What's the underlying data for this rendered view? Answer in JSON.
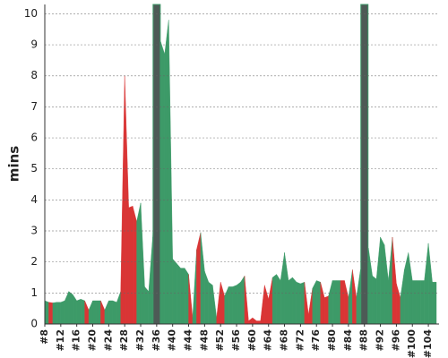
{
  "chart_data": {
    "type": "area",
    "y_label": "mins",
    "x": [
      8,
      9,
      10,
      11,
      12,
      13,
      14,
      15,
      16,
      17,
      18,
      19,
      20,
      21,
      22,
      23,
      24,
      25,
      26,
      27,
      28,
      29,
      30,
      31,
      32,
      33,
      34,
      35,
      36,
      37,
      38,
      39,
      40,
      41,
      42,
      43,
      44,
      45,
      46,
      47,
      48,
      49,
      50,
      51,
      52,
      53,
      54,
      55,
      56,
      57,
      58,
      59,
      60,
      61,
      62,
      63,
      64,
      65,
      66,
      67,
      68,
      69,
      70,
      71,
      72,
      73,
      74,
      75,
      76,
      77,
      78,
      79,
      80,
      81,
      82,
      83,
      84,
      85,
      86,
      87,
      88,
      89,
      90,
      91,
      92,
      93,
      94,
      95,
      96,
      97,
      98,
      99,
      100,
      101,
      102,
      103,
      104,
      105,
      106
    ],
    "values": [
      0.75,
      0.7,
      0.68,
      0.7,
      0.7,
      0.75,
      1.05,
      0.95,
      0.75,
      0.8,
      0.75,
      0.45,
      0.75,
      0.75,
      0.75,
      0.45,
      0.75,
      0.75,
      0.7,
      1.05,
      8.0,
      3.75,
      3.8,
      3.3,
      3.9,
      1.2,
      1.05,
      2.8,
      5.5,
      9.1,
      8.7,
      9.8,
      2.1,
      1.95,
      1.8,
      1.8,
      1.6,
      0.2,
      2.4,
      2.95,
      1.7,
      1.35,
      1.25,
      0.2,
      1.35,
      0.9,
      1.2,
      1.2,
      1.25,
      1.35,
      1.55,
      0.1,
      0.2,
      0.1,
      0.1,
      1.25,
      0.8,
      1.5,
      1.6,
      1.4,
      2.3,
      1.4,
      1.5,
      1.35,
      1.3,
      1.35,
      0.3,
      1.15,
      1.4,
      1.35,
      0.85,
      0.9,
      1.4,
      1.4,
      1.4,
      1.4,
      0.85,
      1.75,
      0.85,
      1.75,
      1.4,
      2.45,
      1.55,
      1.45,
      2.8,
      2.55,
      1.4,
      2.8,
      1.3,
      0.85,
      1.75,
      2.3,
      1.4,
      1.4,
      1.4,
      1.4,
      2.6,
      1.35,
      1.35
    ],
    "colors": [
      "#3d9a68",
      "#3d9a68",
      "#d93535",
      "#3d9a68",
      "#3d9a68",
      "#3d9a68",
      "#3d9a68",
      "#3d9a68",
      "#3d9a68",
      "#3d9a68",
      "#3d9a68",
      "#d93535",
      "#3d9a68",
      "#3d9a68",
      "#3d9a68",
      "#d93535",
      "#3d9a68",
      "#3d9a68",
      "#3d9a68",
      "#3d9a68",
      "#d93535",
      "#d93535",
      "#d93535",
      "#d93535",
      "#3d9a68",
      "#3d9a68",
      "#3d9a68",
      "#3d9a68",
      "#3d9a68",
      "#3d9a68",
      "#3d9a68",
      "#3d9a68",
      "#3d9a68",
      "#3d9a68",
      "#3d9a68",
      "#3d9a68",
      "#3d9a68",
      "#d93535",
      "#3d9a68",
      "#d93535",
      "#3d9a68",
      "#3d9a68",
      "#3d9a68",
      "#3d9a68",
      "#d93535",
      "#d93535",
      "#3d9a68",
      "#3d9a68",
      "#3d9a68",
      "#3d9a68",
      "#3d9a68",
      "#d93535",
      "#d93535",
      "#d93535",
      "#d93535",
      "#d93535",
      "#d93535",
      "#d93535",
      "#3d9a68",
      "#3d9a68",
      "#3d9a68",
      "#3d9a68",
      "#3d9a68",
      "#3d9a68",
      "#3d9a68",
      "#3d9a68",
      "#d93535",
      "#d93535",
      "#3d9a68",
      "#3d9a68",
      "#d93535",
      "#d93535",
      "#3d9a68",
      "#3d9a68",
      "#3d9a68",
      "#d93535",
      "#d93535",
      "#3d9a68",
      "#d93535",
      "#3d9a68",
      "#3d9a68",
      "#3d9a68",
      "#3d9a68",
      "#3d9a68",
      "#3d9a68",
      "#3d9a68",
      "#3d9a68",
      "#3d9a68",
      "#d93535",
      "#d93535",
      "#3d9a68",
      "#3d9a68",
      "#3d9a68",
      "#3d9a68",
      "#3d9a68",
      "#3d9a68",
      "#3d9a68",
      "#3d9a68",
      "#3d9a68"
    ],
    "highlight_x": [
      36,
      88
    ],
    "highlight_color": "#4d5a56",
    "xlim": [
      8,
      106
    ],
    "ylim": [
      0,
      10.3
    ],
    "xticks": [
      {
        "value": 8,
        "label": "#8"
      },
      {
        "value": 12,
        "label": "#12"
      },
      {
        "value": 16,
        "label": "#16"
      },
      {
        "value": 20,
        "label": "#20"
      },
      {
        "value": 24,
        "label": "#24"
      },
      {
        "value": 28,
        "label": "#28"
      },
      {
        "value": 32,
        "label": "#32"
      },
      {
        "value": 36,
        "label": "#36"
      },
      {
        "value": 40,
        "label": "#40"
      },
      {
        "value": 44,
        "label": "#44"
      },
      {
        "value": 48,
        "label": "#48"
      },
      {
        "value": 52,
        "label": "#52"
      },
      {
        "value": 56,
        "label": "#56"
      },
      {
        "value": 60,
        "label": "#60"
      },
      {
        "value": 64,
        "label": "#64"
      },
      {
        "value": 68,
        "label": "#68"
      },
      {
        "value": 72,
        "label": "#72"
      },
      {
        "value": 76,
        "label": "#76"
      },
      {
        "value": 80,
        "label": "#80"
      },
      {
        "value": 84,
        "label": "#84"
      },
      {
        "value": 88,
        "label": "#88"
      },
      {
        "value": 92,
        "label": "#92"
      },
      {
        "value": 96,
        "label": "#96"
      },
      {
        "value": 100,
        "label": "#100"
      },
      {
        "value": 104,
        "label": "#104"
      }
    ],
    "yticks": [
      0,
      1,
      2,
      3,
      4,
      5,
      6,
      7,
      8,
      9,
      10
    ],
    "grid": true
  }
}
